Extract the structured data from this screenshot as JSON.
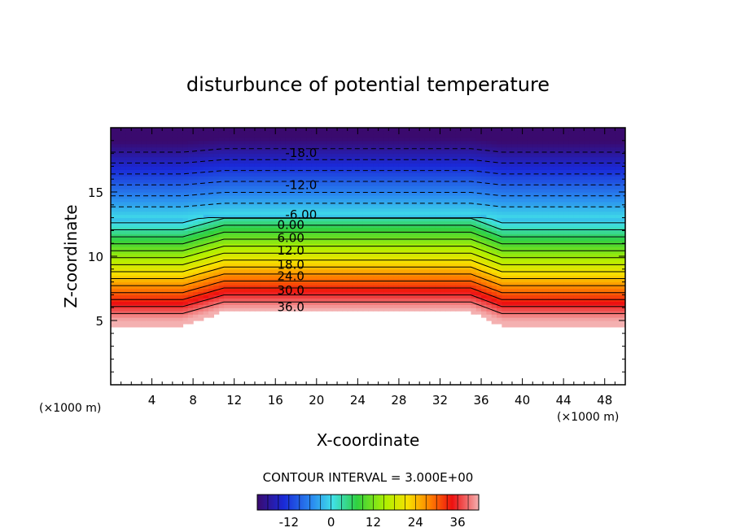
{
  "chart_data": {
    "type": "contour",
    "title": "disturbunce of potential temperature",
    "xlabel": "X-coordinate",
    "ylabel": "Z-coordinate",
    "x_unit": "(×1000 m)",
    "z_unit": "(×1000 m)",
    "xlim": [
      0,
      50
    ],
    "ylim": [
      0,
      20
    ],
    "x_ticks": [
      4,
      8,
      12,
      16,
      20,
      24,
      28,
      32,
      36,
      40,
      44,
      48
    ],
    "y_ticks": [
      5,
      10,
      15
    ],
    "contour_interval_text": "CONTOUR INTERVAL = 3.000E+00",
    "colorbar": {
      "min": -21,
      "max": 42,
      "ticks": [
        -12,
        0,
        12,
        24,
        36
      ]
    },
    "contour_labels": [
      {
        "text": "-18.0",
        "x": 18.5,
        "z": 18.1
      },
      {
        "text": "-12.0",
        "x": 18.5,
        "z": 15.6
      },
      {
        "text": "-6.00",
        "x": 18.5,
        "z": 13.3
      },
      {
        "text": "0.00",
        "x": 17.5,
        "z": 12.5
      },
      {
        "text": "6.00",
        "x": 17.5,
        "z": 11.5
      },
      {
        "text": "12.0",
        "x": 17.5,
        "z": 10.5
      },
      {
        "text": "18.0",
        "x": 17.5,
        "z": 9.4
      },
      {
        "text": "24.0",
        "x": 17.5,
        "z": 8.5
      },
      {
        "text": "30.0",
        "x": 17.5,
        "z": 7.4
      },
      {
        "text": "36.0",
        "x": 17.5,
        "z": 6.1
      }
    ]
  }
}
